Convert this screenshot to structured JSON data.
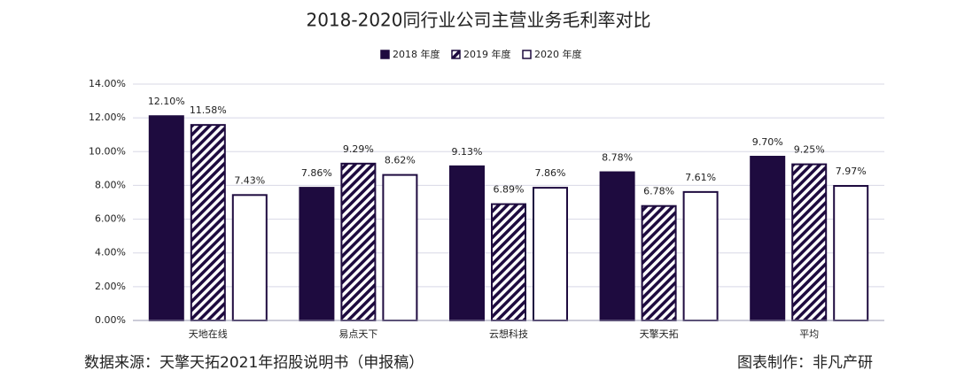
{
  "chart_data": {
    "type": "bar",
    "title": "2018-2020同行业公司主营业务毛利率对比",
    "categories": [
      "天地在线",
      "易点天下",
      "云想科技",
      "天擎天拓",
      "平均"
    ],
    "series": [
      {
        "name": "2018 年度",
        "color": "#1e0b3f",
        "values": [
          12.1,
          7.86,
          9.13,
          8.78,
          9.7
        ],
        "value_labels": [
          "12.10%",
          "7.86%",
          "9.13%",
          "8.78%",
          "9.70%"
        ]
      },
      {
        "name": "2019 年度",
        "color": "#1e0b3f",
        "hatch": true,
        "values": [
          11.58,
          9.29,
          6.89,
          6.78,
          9.25
        ],
        "value_labels": [
          "11.58%",
          "9.29%",
          "6.89%",
          "6.78%",
          "9.25%"
        ]
      },
      {
        "name": "2020 年度",
        "color": "#ffffff",
        "values": [
          7.43,
          8.62,
          7.86,
          7.61,
          7.97
        ],
        "value_labels": [
          "7.43%",
          "8.62%",
          "7.86%",
          "7.61%",
          "7.97%"
        ]
      }
    ],
    "ylim": [
      0,
      14
    ],
    "yticks": [
      {
        "value": 0,
        "label": "0.00%"
      },
      {
        "value": 2,
        "label": "2.00%"
      },
      {
        "value": 4,
        "label": "4.00%"
      },
      {
        "value": 6,
        "label": "6.00%"
      },
      {
        "value": 8,
        "label": "8.00%"
      },
      {
        "value": 10,
        "label": "10.00%"
      },
      {
        "value": 12,
        "label": "12.00%"
      },
      {
        "value": 14,
        "label": "14.00%"
      }
    ],
    "grid": true,
    "legend": "top"
  },
  "footer": {
    "source": "数据来源：天擎天拓2021年招股说明书（申报稿）",
    "credit": "图表制作：非凡产研"
  }
}
